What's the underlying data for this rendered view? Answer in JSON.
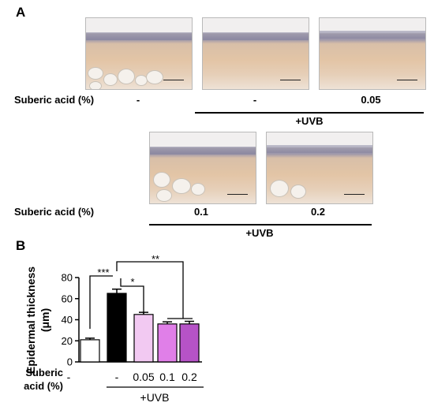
{
  "panel_a": {
    "letter": "A",
    "row1": {
      "label": "Suberic acid (%)",
      "conditions": [
        "-",
        "-",
        "0.05"
      ],
      "uvb_label": "+UVB"
    },
    "row2": {
      "label": "Suberic acid (%)",
      "conditions": [
        "0.1",
        "0.2"
      ],
      "uvb_label": "+UVB"
    }
  },
  "panel_b": {
    "letter": "B",
    "x_row_label": "Suberic\nacid (%)",
    "uvb_label": "+UVB",
    "significance": [
      {
        "label": "***",
        "from": 0,
        "to": 1
      },
      {
        "label": "*",
        "from": 1,
        "to": 2
      },
      {
        "label": "**",
        "from": 1,
        "to": "3-4"
      }
    ]
  },
  "chart_data": {
    "type": "bar",
    "categories": [
      "-",
      "-",
      "0.05",
      "0.1",
      "0.2"
    ],
    "values": [
      21,
      65,
      45,
      36,
      36
    ],
    "errors": [
      1.5,
      4,
      2,
      2,
      2.5
    ],
    "bar_colors": [
      "#ffffff",
      "#000000",
      "#f2c9f2",
      "#e07fe8",
      "#b653c7"
    ],
    "title": "",
    "xlabel": "",
    "ylabel": "Epidermal thickness (μm)",
    "ylim": [
      0,
      80
    ],
    "yticks": [
      0,
      20,
      40,
      60,
      80
    ],
    "grid": false
  }
}
